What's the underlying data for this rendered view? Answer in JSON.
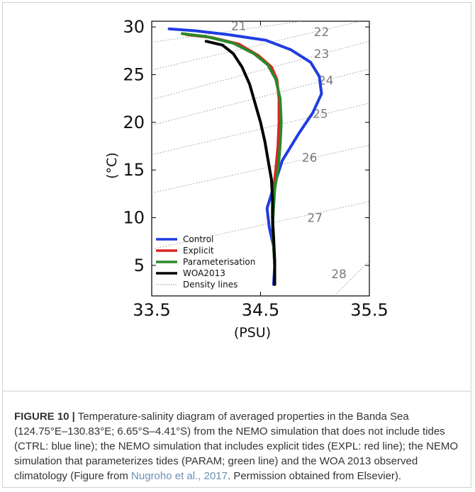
{
  "chart_data": {
    "type": "line",
    "xlabel": "(PSU)",
    "ylabel": "(°C)",
    "xlim": [
      33.5,
      35.5
    ],
    "ylim": [
      1.8,
      30.6
    ],
    "xticks": [
      "33.5",
      "34.5",
      "35.5"
    ],
    "yticks": [
      "5",
      "10",
      "15",
      "20",
      "25",
      "30"
    ],
    "grid": false,
    "legend_position": "lower-left",
    "series": [
      {
        "name": "Control",
        "color": "#1f3de0",
        "x": [
          33.66,
          33.9,
          34.2,
          34.55,
          34.78,
          34.96,
          35.04,
          35.06,
          34.98,
          34.85,
          34.7,
          34.62,
          34.56,
          34.58,
          34.62,
          34.63,
          34.62
        ],
        "y": [
          29.8,
          29.6,
          29.2,
          28.6,
          27.6,
          26.3,
          24.8,
          23.0,
          21.0,
          18.8,
          16.0,
          13.2,
          11.0,
          9.0,
          7.0,
          5.0,
          3.0
        ]
      },
      {
        "name": "Explicit",
        "color": "#e02020",
        "x": [
          33.82,
          34.05,
          34.3,
          34.48,
          34.6,
          34.65,
          34.67,
          34.67,
          34.66,
          34.64,
          34.62,
          34.61,
          34.61,
          34.62,
          34.63,
          34.63
        ],
        "y": [
          29.2,
          28.9,
          28.2,
          27.0,
          25.8,
          24.5,
          22.5,
          20.0,
          17.5,
          15.0,
          13.0,
          11.0,
          9.0,
          7.0,
          5.0,
          3.0
        ]
      },
      {
        "name": "Parameterisation",
        "color": "#2a8a2a",
        "x": [
          33.78,
          34.0,
          34.25,
          34.44,
          34.57,
          34.64,
          34.68,
          34.69,
          34.68,
          34.66,
          34.63,
          34.62,
          34.61,
          34.62,
          34.63,
          34.63
        ],
        "y": [
          29.3,
          29.0,
          28.3,
          27.2,
          26.0,
          24.5,
          22.5,
          20.0,
          17.5,
          15.0,
          13.0,
          11.0,
          9.0,
          7.0,
          5.0,
          3.0
        ]
      },
      {
        "name": "WOA2013",
        "color": "#000000",
        "x": [
          34.0,
          34.15,
          34.25,
          34.33,
          34.4,
          34.45,
          34.5,
          34.54,
          34.57,
          34.6,
          34.61,
          34.61,
          34.62,
          34.63,
          34.63
        ],
        "y": [
          28.5,
          28.1,
          27.2,
          25.8,
          24.0,
          22.0,
          20.0,
          18.0,
          16.0,
          14.0,
          12.0,
          10.0,
          8.0,
          5.5,
          3.0
        ]
      },
      {
        "name": "Density lines",
        "color": "#999999",
        "style": "dotted"
      }
    ],
    "density_lines": [
      {
        "label": "21",
        "x": [
          33.5,
          35.5
        ],
        "y": [
          28.4,
          31.6
        ],
        "label_at": [
          34.3,
          30.1
        ]
      },
      {
        "label": "22",
        "x": [
          33.5,
          35.5
        ],
        "y": [
          25.5,
          30.8
        ],
        "label_at": [
          35.06,
          29.5
        ]
      },
      {
        "label": "23",
        "x": [
          33.5,
          35.5
        ],
        "y": [
          22.4,
          28.5
        ],
        "label_at": [
          35.06,
          27.2
        ]
      },
      {
        "label": "24",
        "x": [
          33.5,
          35.5
        ],
        "y": [
          19.7,
          25.6
        ],
        "label_at": [
          35.1,
          24.4
        ]
      },
      {
        "label": "25",
        "x": [
          33.5,
          35.5
        ],
        "y": [
          16.6,
          22.0
        ],
        "label_at": [
          35.05,
          20.9
        ]
      },
      {
        "label": "26",
        "x": [
          33.5,
          35.5
        ],
        "y": [
          12.6,
          17.6
        ],
        "label_at": [
          34.95,
          16.3
        ]
      },
      {
        "label": "27",
        "x": [
          33.5,
          35.5
        ],
        "y": [
          6.7,
          11.7
        ],
        "label_at": [
          35.0,
          10.0
        ]
      },
      {
        "label": "28",
        "x": [
          34.5,
          35.5
        ],
        "y": [
          -6.0,
          5.5
        ],
        "label_at": [
          35.22,
          4.1
        ]
      }
    ]
  },
  "caption": {
    "label": "FIGURE 10 |",
    "text": " Temperature-salinity diagram of averaged properties in the Banda Sea (124.75°E–130.83°E; 6.65°S–4.41°S) from the NEMO simulation that does not include tides (CTRL: blue line); the NEMO simulation that includes explicit tides (EXPL: red line); the NEMO simulation that parameterizes tides (PARAM; green line) and the WOA 2013 observed climatology (Figure from ",
    "citation": "Nugroho et al., 2017",
    "tail": ". Permission obtained from Elsevier)."
  }
}
